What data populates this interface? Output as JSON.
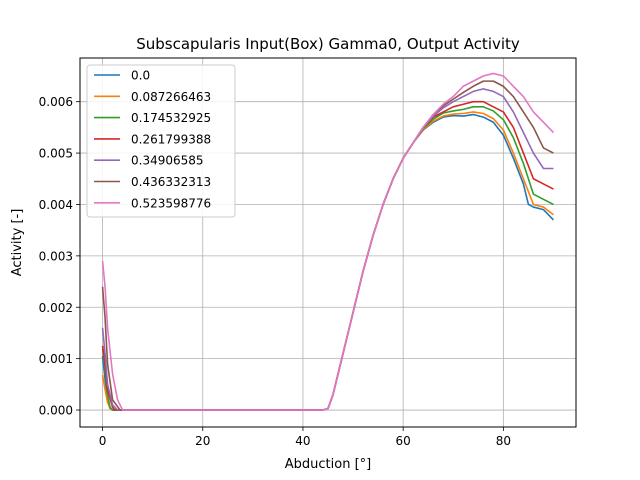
{
  "chart_data": {
    "type": "line",
    "title": "Subscapularis Input(Box) Gamma0, Output Activity",
    "xlabel": "Abduction [°]",
    "ylabel": "Activity [-]",
    "xlim": [
      -4.5,
      94.5
    ],
    "ylim": [
      -0.00033,
      0.00685
    ],
    "xticks": [
      0,
      20,
      40,
      60,
      80
    ],
    "xtick_labels": [
      "0",
      "20",
      "40",
      "60",
      "80"
    ],
    "yticks": [
      0.0,
      0.001,
      0.002,
      0.003,
      0.004,
      0.005,
      0.006
    ],
    "ytick_labels": [
      "0.000",
      "0.001",
      "0.002",
      "0.003",
      "0.004",
      "0.005",
      "0.006"
    ],
    "grid": true,
    "legend_position": "upper-left",
    "series": [
      {
        "name": "0.0",
        "color": "#1f77b4",
        "points": [
          [
            0,
            0.00105
          ],
          [
            0.5,
            0.0006
          ],
          [
            1,
            0.0002
          ],
          [
            1.5,
            3e-05
          ],
          [
            2,
            0.0
          ],
          [
            44,
            0.0
          ],
          [
            45,
            3e-05
          ],
          [
            46,
            0.0003
          ],
          [
            48,
            0.0011
          ],
          [
            50,
            0.0019
          ],
          [
            52,
            0.0027
          ],
          [
            54,
            0.0034
          ],
          [
            56,
            0.004
          ],
          [
            58,
            0.0045
          ],
          [
            60,
            0.0049
          ],
          [
            62,
            0.0052
          ],
          [
            64,
            0.00545
          ],
          [
            66,
            0.0056
          ],
          [
            68,
            0.0057
          ],
          [
            70,
            0.00573
          ],
          [
            72,
            0.00572
          ],
          [
            74,
            0.00575
          ],
          [
            76,
            0.0057
          ],
          [
            78,
            0.0056
          ],
          [
            80,
            0.00535
          ],
          [
            82,
            0.0049
          ],
          [
            84,
            0.0044
          ],
          [
            85,
            0.004
          ],
          [
            86,
            0.00395
          ],
          [
            88,
            0.0039
          ],
          [
            90,
            0.0037
          ]
        ]
      },
      {
        "name": "0.087266463",
        "color": "#ff7f0e",
        "points": [
          [
            0,
            0.00068
          ],
          [
            0.5,
            0.0004
          ],
          [
            1,
            0.00015
          ],
          [
            1.5,
            3e-05
          ],
          [
            2,
            0.0
          ],
          [
            44,
            0.0
          ],
          [
            45,
            3e-05
          ],
          [
            46,
            0.0003
          ],
          [
            48,
            0.0011
          ],
          [
            50,
            0.0019
          ],
          [
            52,
            0.0027
          ],
          [
            54,
            0.0034
          ],
          [
            56,
            0.004
          ],
          [
            58,
            0.0045
          ],
          [
            60,
            0.0049
          ],
          [
            62,
            0.0052
          ],
          [
            64,
            0.00546
          ],
          [
            66,
            0.00562
          ],
          [
            68,
            0.00572
          ],
          [
            70,
            0.00576
          ],
          [
            72,
            0.00577
          ],
          [
            74,
            0.0058
          ],
          [
            76,
            0.00577
          ],
          [
            78,
            0.00567
          ],
          [
            80,
            0.00545
          ],
          [
            82,
            0.005
          ],
          [
            84,
            0.0045
          ],
          [
            86,
            0.004
          ],
          [
            88,
            0.00395
          ],
          [
            90,
            0.0038
          ]
        ]
      },
      {
        "name": "0.174532925",
        "color": "#2ca02c",
        "points": [
          [
            0,
            0.0012
          ],
          [
            0.5,
            0.0008
          ],
          [
            1,
            0.0003
          ],
          [
            1.5,
            5e-05
          ],
          [
            2,
            0.0
          ],
          [
            44,
            0.0
          ],
          [
            45,
            3e-05
          ],
          [
            46,
            0.0003
          ],
          [
            48,
            0.0011
          ],
          [
            50,
            0.0019
          ],
          [
            52,
            0.0027
          ],
          [
            54,
            0.0034
          ],
          [
            56,
            0.004
          ],
          [
            58,
            0.0045
          ],
          [
            60,
            0.0049
          ],
          [
            62,
            0.0052
          ],
          [
            64,
            0.00548
          ],
          [
            66,
            0.00566
          ],
          [
            68,
            0.00578
          ],
          [
            70,
            0.00582
          ],
          [
            72,
            0.00585
          ],
          [
            74,
            0.0059
          ],
          [
            76,
            0.0059
          ],
          [
            78,
            0.00582
          ],
          [
            80,
            0.00565
          ],
          [
            82,
            0.0053
          ],
          [
            84,
            0.0048
          ],
          [
            86,
            0.0042
          ],
          [
            88,
            0.0041
          ],
          [
            90,
            0.004
          ]
        ]
      },
      {
        "name": "0.261799388",
        "color": "#d62728",
        "points": [
          [
            0,
            0.00125
          ],
          [
            0.5,
            0.0009
          ],
          [
            1,
            0.0004
          ],
          [
            2,
            5e-05
          ],
          [
            2.5,
            0.0
          ],
          [
            44,
            0.0
          ],
          [
            45,
            3e-05
          ],
          [
            46,
            0.0003
          ],
          [
            48,
            0.0011
          ],
          [
            50,
            0.0019
          ],
          [
            52,
            0.0027
          ],
          [
            54,
            0.0034
          ],
          [
            56,
            0.004
          ],
          [
            58,
            0.0045
          ],
          [
            60,
            0.0049
          ],
          [
            62,
            0.0052
          ],
          [
            64,
            0.0055
          ],
          [
            66,
            0.0057
          ],
          [
            68,
            0.0058
          ],
          [
            70,
            0.0059
          ],
          [
            72,
            0.00595
          ],
          [
            74,
            0.006
          ],
          [
            76,
            0.006
          ],
          [
            78,
            0.0059
          ],
          [
            80,
            0.0058
          ],
          [
            82,
            0.0055
          ],
          [
            84,
            0.005
          ],
          [
            86,
            0.0045
          ],
          [
            88,
            0.0044
          ],
          [
            90,
            0.0043
          ]
        ]
      },
      {
        "name": "0.34906585",
        "color": "#9467bd",
        "points": [
          [
            0,
            0.0016
          ],
          [
            0.5,
            0.0011
          ],
          [
            1,
            0.0005
          ],
          [
            2,
            0.0001
          ],
          [
            3,
            0.0
          ],
          [
            44,
            0.0
          ],
          [
            45,
            3e-05
          ],
          [
            46,
            0.0003
          ],
          [
            48,
            0.0011
          ],
          [
            50,
            0.0019
          ],
          [
            52,
            0.0027
          ],
          [
            54,
            0.0034
          ],
          [
            56,
            0.004
          ],
          [
            58,
            0.0045
          ],
          [
            60,
            0.0049
          ],
          [
            62,
            0.0052
          ],
          [
            64,
            0.0055
          ],
          [
            66,
            0.00572
          ],
          [
            68,
            0.00588
          ],
          [
            70,
            0.006
          ],
          [
            72,
            0.0061
          ],
          [
            74,
            0.0062
          ],
          [
            76,
            0.00625
          ],
          [
            78,
            0.0062
          ],
          [
            80,
            0.0061
          ],
          [
            82,
            0.0058
          ],
          [
            84,
            0.0054
          ],
          [
            86,
            0.005
          ],
          [
            88,
            0.0047
          ],
          [
            90,
            0.0047
          ]
        ]
      },
      {
        "name": "0.436332313",
        "color": "#8c564b",
        "points": [
          [
            0,
            0.0024
          ],
          [
            0.5,
            0.0018
          ],
          [
            1,
            0.0009
          ],
          [
            2,
            0.0002
          ],
          [
            3.5,
            0.0
          ],
          [
            44,
            0.0
          ],
          [
            45,
            3e-05
          ],
          [
            46,
            0.0003
          ],
          [
            48,
            0.0011
          ],
          [
            50,
            0.0019
          ],
          [
            52,
            0.0027
          ],
          [
            54,
            0.0034
          ],
          [
            56,
            0.004
          ],
          [
            58,
            0.0045
          ],
          [
            60,
            0.0049
          ],
          [
            62,
            0.0052
          ],
          [
            64,
            0.0055
          ],
          [
            66,
            0.00575
          ],
          [
            68,
            0.00592
          ],
          [
            70,
            0.00605
          ],
          [
            72,
            0.00618
          ],
          [
            74,
            0.0063
          ],
          [
            76,
            0.0064
          ],
          [
            78,
            0.0064
          ],
          [
            80,
            0.0063
          ],
          [
            82,
            0.0061
          ],
          [
            84,
            0.0058
          ],
          [
            86,
            0.0055
          ],
          [
            88,
            0.0051
          ],
          [
            90,
            0.005
          ]
        ]
      },
      {
        "name": "0.523598776",
        "color": "#e377c2",
        "points": [
          [
            0,
            0.0029
          ],
          [
            0.5,
            0.0024
          ],
          [
            1,
            0.0016
          ],
          [
            2,
            0.0007
          ],
          [
            3,
            0.0002
          ],
          [
            4,
            0.0
          ],
          [
            44,
            0.0
          ],
          [
            45,
            3e-05
          ],
          [
            46,
            0.0003
          ],
          [
            48,
            0.0011
          ],
          [
            50,
            0.0019
          ],
          [
            52,
            0.0027
          ],
          [
            54,
            0.0034
          ],
          [
            56,
            0.004
          ],
          [
            58,
            0.0045
          ],
          [
            60,
            0.0049
          ],
          [
            62,
            0.0052
          ],
          [
            64,
            0.0055
          ],
          [
            66,
            0.00575
          ],
          [
            68,
            0.00595
          ],
          [
            70,
            0.0061
          ],
          [
            72,
            0.0063
          ],
          [
            74,
            0.0064
          ],
          [
            76,
            0.0065
          ],
          [
            78,
            0.00655
          ],
          [
            80,
            0.0065
          ],
          [
            82,
            0.0063
          ],
          [
            84,
            0.0061
          ],
          [
            86,
            0.0058
          ],
          [
            88,
            0.0056
          ],
          [
            90,
            0.0054
          ]
        ]
      }
    ]
  }
}
